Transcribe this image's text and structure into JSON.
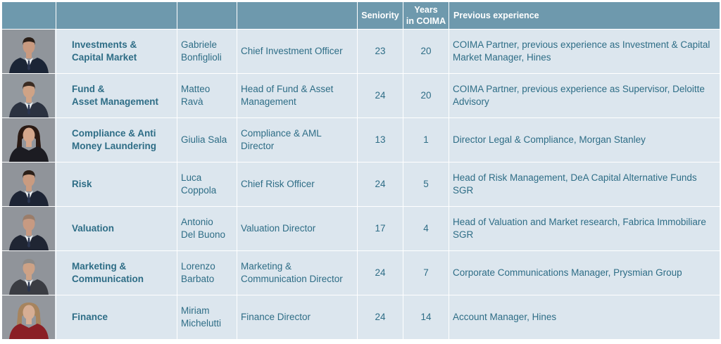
{
  "header": {
    "col_photo": "",
    "col_area": "",
    "col_name": "",
    "col_role": "",
    "seniority": "Seniority",
    "years_line1": "Years",
    "years_line2": "in COIMA",
    "previous": "Previous experience"
  },
  "rows": [
    {
      "area1": "Investments &",
      "area2": "Capital Market",
      "name1": "Gabriele",
      "name2": "Bonfiglioli",
      "role1": "Chief Investment Officer",
      "role2": "",
      "seniority": "23",
      "years": "20",
      "prev1": "COIMA Partner, previous experience as Investment & Capital",
      "prev2": "Market Manager, Hines",
      "photo": {
        "suit": "#1b2536",
        "hair": "#2a1e17",
        "skin": "#c89a80",
        "bg": "#8a8f95"
      }
    },
    {
      "area1": "Fund &",
      "area2": "Asset Management",
      "name1": "Matteo",
      "name2": "Ravà",
      "role1": "Head of Fund & Asset",
      "role2": "Management",
      "seniority": "24",
      "years": "20",
      "prev1": "COIMA Partner, previous experience as Supervisor, Deloitte",
      "prev2": "Advisory",
      "photo": {
        "suit": "#2b3240",
        "hair": "#3a2b22",
        "skin": "#cfa386",
        "bg": "#8d9399"
      }
    },
    {
      "area1": "Compliance & Anti",
      "area2": "Money Laundering",
      "name1": "Giulia Sala",
      "name2": "",
      "role1": "Compliance & AML",
      "role2": "Director",
      "seniority": "13",
      "years": "1",
      "prev1": "Director Legal & Compliance, Morgan Stanley",
      "prev2": "",
      "photo": {
        "suit": "#1c1c22",
        "hair": "#2a1a14",
        "skin": "#d4a78c",
        "bg": "#8c9096"
      }
    },
    {
      "area1": "Risk",
      "area2": "",
      "name1": "Luca",
      "name2": "Coppola",
      "role1": "Chief Risk Officer",
      "role2": "",
      "seniority": "24",
      "years": "5",
      "prev1": "Head of Risk Management, DeA Capital Alternative Funds",
      "prev2": "SGR",
      "photo": {
        "suit": "#1d2434",
        "hair": "#2b1f18",
        "skin": "#c99b80",
        "bg": "#8a8e94"
      }
    },
    {
      "area1": "Valuation",
      "area2": "",
      "name1": "Antonio",
      "name2": "Del Buono",
      "role1": "Valuation Director",
      "role2": "",
      "seniority": "17",
      "years": "4",
      "prev1": "Head of Valuation and Market research, Fabrica Immobiliare",
      "prev2": "SGR",
      "photo": {
        "suit": "#1f2533",
        "hair": "#9a7d6a",
        "skin": "#c79a82",
        "bg": "#8b8f95"
      }
    },
    {
      "area1": "Marketing &",
      "area2": "Communication",
      "name1": "Lorenzo",
      "name2": "Barbato",
      "role1": "Marketing &",
      "role2": "Communication Director",
      "seniority": "24",
      "years": "7",
      "prev1": "Corporate Communications Manager, Prysmian Group",
      "prev2": "",
      "photo": {
        "suit": "#3a3c42",
        "hair": "#8c8a88",
        "skin": "#cda286",
        "bg": "#8a8e94"
      }
    },
    {
      "area1": "Finance",
      "area2": "",
      "name1": "Miriam",
      "name2": "Michelutti",
      "role1": "Finance Director",
      "role2": "",
      "seniority": "24",
      "years": "14",
      "prev1": "Account Manager, Hines",
      "prev2": "",
      "photo": {
        "suit": "#8a1f25",
        "hair": "#a7845e",
        "skin": "#d7ae94",
        "bg": "#8d9197"
      }
    }
  ]
}
